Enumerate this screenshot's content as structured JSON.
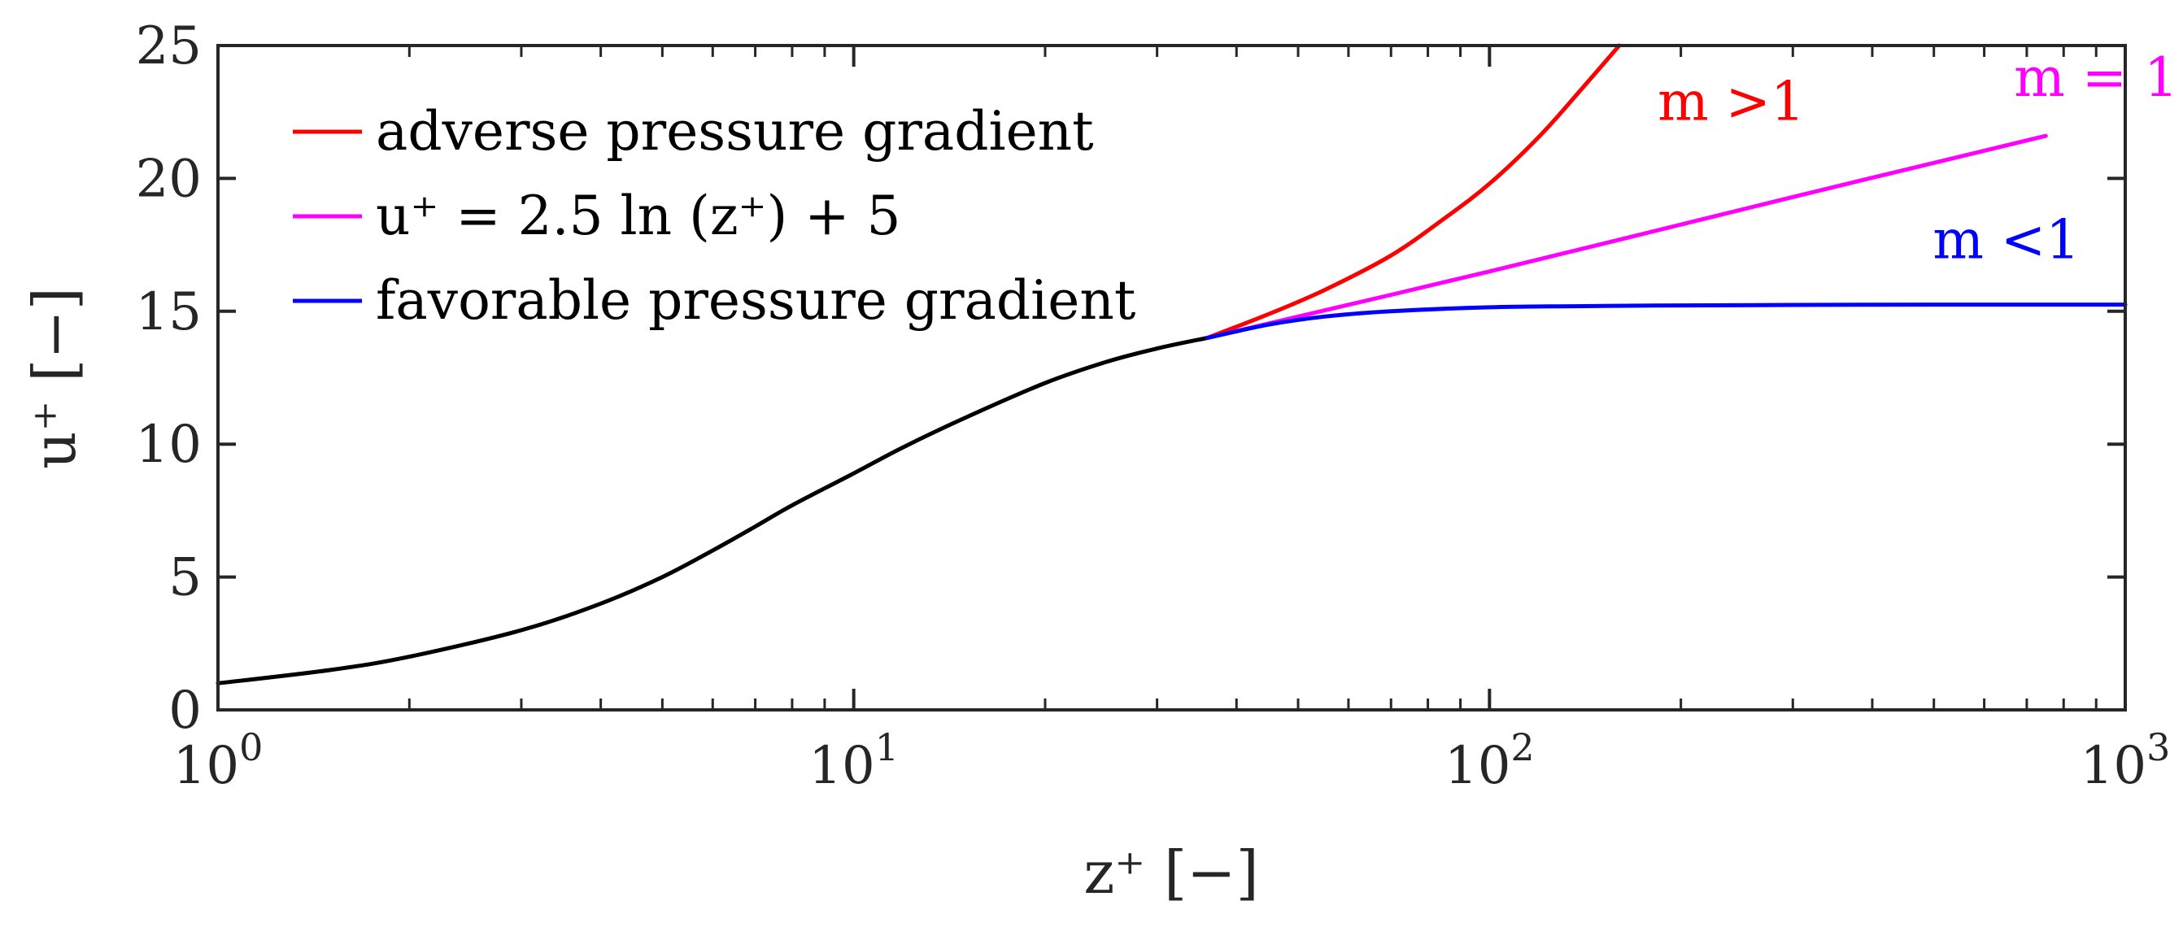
{
  "chart_data": {
    "type": "line",
    "xscale": "log",
    "xlim": [
      1,
      1000
    ],
    "ylim": [
      0,
      25
    ],
    "grid": false,
    "legend_placement": "top-left",
    "xlabel": "z⁺ [−]",
    "ylabel": "u⁺ [−]",
    "xticks": [
      {
        "value": 1,
        "base": "10",
        "exp": "0"
      },
      {
        "value": 10,
        "base": "10",
        "exp": "1"
      },
      {
        "value": 100,
        "base": "10",
        "exp": "2"
      },
      {
        "value": 1000,
        "base": "10",
        "exp": "3"
      }
    ],
    "yticks": [
      0,
      5,
      10,
      15,
      20,
      25
    ],
    "series": [
      {
        "color": "#000000",
        "x": [
          1,
          1.5,
          2,
          3,
          4,
          5,
          6,
          7,
          8,
          10,
          12,
          15,
          20,
          25,
          30,
          36
        ],
        "y": [
          1.0,
          1.5,
          2.0,
          3.0,
          4.0,
          5.0,
          6.0,
          6.9,
          7.7,
          8.9,
          9.9,
          11.0,
          12.3,
          13.1,
          13.6,
          14.0
        ]
      },
      {
        "name": "adverse pressure gradient",
        "color": "#ff0000",
        "x": [
          36,
          45,
          55,
          70,
          85,
          100,
          120,
          140,
          160
        ],
        "y": [
          14.0,
          14.9,
          15.8,
          17.1,
          18.5,
          19.8,
          21.6,
          23.4,
          25.0
        ]
      },
      {
        "name": "u⁺ = 2.5 ln (z⁺) + 5",
        "color": "#ff00ff",
        "x": [
          36,
          100,
          300,
          750
        ],
        "y": [
          14.0,
          16.5,
          19.3,
          21.6
        ]
      },
      {
        "name": "favorable pressure gradient",
        "color": "#0000ff",
        "x": [
          36,
          45,
          55,
          70,
          100,
          150,
          200,
          300,
          500,
          1000
        ],
        "y": [
          14.0,
          14.5,
          14.8,
          15.0,
          15.15,
          15.2,
          15.22,
          15.24,
          15.25,
          15.25
        ]
      }
    ],
    "annotations": [
      {
        "text": "m >1",
        "x": 240,
        "y": 22.2,
        "color": "#ff0000"
      },
      {
        "text": "m = 1",
        "x": 900,
        "y": 23.1,
        "color": "#ff00ff"
      },
      {
        "text": "m <1",
        "x": 650,
        "y": 17.0,
        "color": "#0000ff"
      }
    ]
  }
}
